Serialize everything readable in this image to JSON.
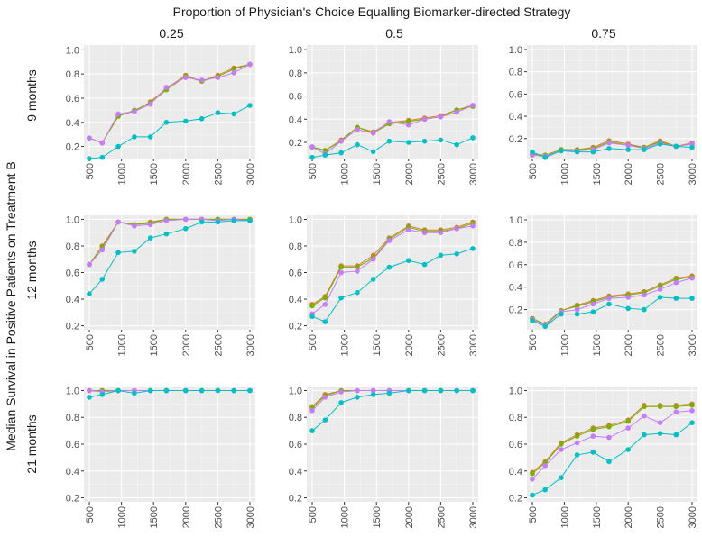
{
  "chart_data": {
    "type": "line",
    "title": "Proportion of Physician's Choice Equalling Biomarker-directed Strategy",
    "ylabel": "Median Survival in Positive Patients on Treatment B",
    "xlabel": "",
    "column_labels": [
      "0.25",
      "0.5",
      "0.75"
    ],
    "row_labels": [
      "9 months",
      "12 months",
      "21 months"
    ],
    "x": [
      500,
      700,
      950,
      1200,
      1450,
      1700,
      2000,
      2250,
      2500,
      2750,
      3000
    ],
    "x_ticks": [
      500,
      1000,
      1500,
      2000,
      2500,
      3000
    ],
    "grid": true,
    "legend": "none",
    "series_colors": [
      "#d1802d",
      "#7cae00",
      "#c77cff",
      "#00bfc4"
    ],
    "panels": [
      {
        "row": 0,
        "col": 0,
        "ylim": [
          0.1,
          1.04
        ],
        "yticks": [
          0.2,
          0.4,
          0.6,
          0.8,
          1.0
        ],
        "series": [
          {
            "values": [
              0.27,
              0.23,
              0.46,
              0.49,
              0.57,
              0.68,
              0.79,
              0.74,
              0.79,
              0.85,
              0.88
            ]
          },
          {
            "values": [
              0.27,
              0.23,
              0.45,
              0.5,
              0.56,
              0.67,
              0.78,
              0.74,
              0.78,
              0.84,
              0.88
            ]
          },
          {
            "values": [
              0.27,
              0.23,
              0.47,
              0.49,
              0.55,
              0.69,
              0.77,
              0.75,
              0.77,
              0.81,
              0.88
            ]
          },
          {
            "values": [
              0.1,
              0.11,
              0.2,
              0.28,
              0.28,
              0.4,
              0.41,
              0.43,
              0.48,
              0.47,
              0.54
            ]
          }
        ]
      },
      {
        "row": 0,
        "col": 1,
        "ylim": [
          0.06,
          1.04
        ],
        "yticks": [
          0.2,
          0.4,
          0.6,
          0.8,
          1.0
        ],
        "series": [
          {
            "values": [
              0.16,
              0.13,
              0.22,
              0.33,
              0.29,
              0.37,
              0.39,
              0.41,
              0.43,
              0.48,
              0.52
            ]
          },
          {
            "values": [
              0.16,
              0.13,
              0.21,
              0.33,
              0.28,
              0.36,
              0.38,
              0.4,
              0.42,
              0.48,
              0.51
            ]
          },
          {
            "values": [
              0.16,
              0.1,
              0.21,
              0.31,
              0.28,
              0.38,
              0.35,
              0.4,
              0.42,
              0.46,
              0.52
            ]
          },
          {
            "values": [
              0.07,
              0.09,
              0.11,
              0.18,
              0.12,
              0.21,
              0.2,
              0.21,
              0.22,
              0.18,
              0.24
            ]
          }
        ]
      },
      {
        "row": 0,
        "col": 2,
        "ylim": [
          0.02,
          1.04
        ],
        "yticks": [
          0.2,
          0.4,
          0.6,
          0.8,
          1.0
        ],
        "series": [
          {
            "values": [
              0.06,
              0.05,
              0.1,
              0.1,
              0.12,
              0.18,
              0.15,
              0.12,
              0.18,
              0.13,
              0.16
            ]
          },
          {
            "values": [
              0.06,
              0.05,
              0.1,
              0.1,
              0.11,
              0.17,
              0.14,
              0.12,
              0.17,
              0.13,
              0.15
            ]
          },
          {
            "values": [
              0.05,
              0.04,
              0.09,
              0.09,
              0.1,
              0.16,
              0.14,
              0.11,
              0.16,
              0.13,
              0.15
            ]
          },
          {
            "values": [
              0.08,
              0.03,
              0.09,
              0.08,
              0.08,
              0.11,
              0.1,
              0.1,
              0.15,
              0.13,
              0.12
            ]
          }
        ]
      },
      {
        "row": 1,
        "col": 0,
        "ylim": [
          0.17,
          1.03
        ],
        "yticks": [
          0.2,
          0.4,
          0.6,
          0.8,
          1.0
        ],
        "series": [
          {
            "values": [
              0.66,
              0.8,
              0.98,
              0.96,
              0.98,
              1.0,
              1.0,
              1.0,
              1.0,
              1.0,
              1.0
            ]
          },
          {
            "values": [
              0.66,
              0.79,
              0.98,
              0.96,
              0.97,
              1.0,
              1.0,
              1.0,
              1.0,
              1.0,
              1.0
            ]
          },
          {
            "values": [
              0.66,
              0.77,
              0.98,
              0.95,
              0.96,
              0.99,
              1.0,
              1.0,
              0.99,
              1.0,
              0.99
            ]
          },
          {
            "values": [
              0.44,
              0.55,
              0.75,
              0.76,
              0.86,
              0.89,
              0.93,
              0.98,
              0.98,
              0.99,
              0.99
            ]
          }
        ]
      },
      {
        "row": 1,
        "col": 1,
        "ylim": [
          0.17,
          1.03
        ],
        "yticks": [
          0.2,
          0.4,
          0.6,
          0.8,
          1.0
        ],
        "series": [
          {
            "values": [
              0.36,
              0.42,
              0.65,
              0.65,
              0.73,
              0.86,
              0.95,
              0.92,
              0.92,
              0.94,
              0.98
            ]
          },
          {
            "values": [
              0.35,
              0.41,
              0.64,
              0.64,
              0.71,
              0.85,
              0.94,
              0.91,
              0.91,
              0.93,
              0.97
            ]
          },
          {
            "values": [
              0.29,
              0.36,
              0.6,
              0.61,
              0.7,
              0.84,
              0.92,
              0.9,
              0.9,
              0.93,
              0.95
            ]
          },
          {
            "values": [
              0.27,
              0.23,
              0.41,
              0.45,
              0.55,
              0.64,
              0.69,
              0.66,
              0.73,
              0.74,
              0.78
            ]
          }
        ]
      },
      {
        "row": 1,
        "col": 2,
        "ylim": [
          0.02,
          1.04
        ],
        "yticks": [
          0.2,
          0.4,
          0.6,
          0.8,
          1.0
        ],
        "series": [
          {
            "values": [
              0.12,
              0.07,
              0.19,
              0.24,
              0.28,
              0.32,
              0.34,
              0.36,
              0.42,
              0.48,
              0.5
            ]
          },
          {
            "values": [
              0.12,
              0.07,
              0.19,
              0.23,
              0.27,
              0.31,
              0.33,
              0.35,
              0.41,
              0.47,
              0.49
            ]
          },
          {
            "values": [
              0.11,
              0.06,
              0.18,
              0.2,
              0.25,
              0.3,
              0.31,
              0.33,
              0.38,
              0.44,
              0.48
            ]
          },
          {
            "values": [
              0.1,
              0.05,
              0.16,
              0.16,
              0.18,
              0.25,
              0.21,
              0.2,
              0.31,
              0.3,
              0.3
            ]
          }
        ]
      },
      {
        "row": 2,
        "col": 0,
        "ylim": [
          0.17,
          1.03
        ],
        "yticks": [
          0.2,
          0.4,
          0.6,
          0.8,
          1.0
        ],
        "series": [
          {
            "values": [
              1.0,
              1.0,
              1.0,
              1.0,
              1.0,
              1.0,
              1.0,
              1.0,
              1.0,
              1.0,
              1.0
            ]
          },
          {
            "values": [
              1.0,
              1.0,
              1.0,
              1.0,
              1.0,
              1.0,
              1.0,
              1.0,
              1.0,
              1.0,
              1.0
            ]
          },
          {
            "values": [
              1.0,
              0.99,
              1.0,
              1.0,
              1.0,
              1.0,
              1.0,
              1.0,
              1.0,
              1.0,
              1.0
            ]
          },
          {
            "values": [
              0.95,
              0.97,
              1.0,
              0.98,
              1.0,
              1.0,
              1.0,
              1.0,
              1.0,
              1.0,
              1.0
            ]
          }
        ]
      },
      {
        "row": 2,
        "col": 1,
        "ylim": [
          0.17,
          1.03
        ],
        "yticks": [
          0.2,
          0.4,
          0.6,
          0.8,
          1.0
        ],
        "series": [
          {
            "values": [
              0.88,
              0.97,
              1.0,
              1.0,
              1.0,
              1.0,
              1.0,
              1.0,
              1.0,
              1.0,
              1.0
            ]
          },
          {
            "values": [
              0.87,
              0.96,
              1.0,
              1.0,
              1.0,
              1.0,
              1.0,
              1.0,
              1.0,
              1.0,
              1.0
            ]
          },
          {
            "values": [
              0.85,
              0.95,
              0.99,
              1.0,
              1.0,
              1.0,
              1.0,
              1.0,
              1.0,
              1.0,
              1.0
            ]
          },
          {
            "values": [
              0.7,
              0.78,
              0.91,
              0.95,
              0.97,
              0.98,
              1.0,
              1.0,
              1.0,
              1.0,
              1.0
            ]
          }
        ]
      },
      {
        "row": 2,
        "col": 2,
        "ylim": [
          0.17,
          1.03
        ],
        "yticks": [
          0.2,
          0.4,
          0.6,
          0.8,
          1.0
        ],
        "series": [
          {
            "values": [
              0.39,
              0.47,
              0.61,
              0.67,
              0.72,
              0.74,
              0.78,
              0.89,
              0.89,
              0.89,
              0.9
            ]
          },
          {
            "values": [
              0.38,
              0.46,
              0.6,
              0.66,
              0.71,
              0.73,
              0.77,
              0.88,
              0.88,
              0.88,
              0.89
            ]
          },
          {
            "values": [
              0.34,
              0.44,
              0.56,
              0.61,
              0.66,
              0.65,
              0.72,
              0.81,
              0.76,
              0.84,
              0.85
            ]
          },
          {
            "values": [
              0.22,
              0.26,
              0.35,
              0.52,
              0.54,
              0.47,
              0.56,
              0.67,
              0.68,
              0.67,
              0.76
            ]
          }
        ]
      }
    ]
  }
}
